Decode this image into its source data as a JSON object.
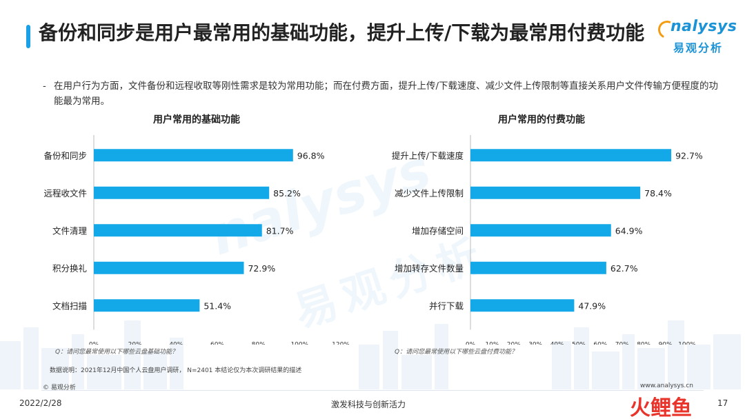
{
  "header": {
    "title": "备份和同步是用户最常用的基础功能，提升上传/下载为最常用付费功能",
    "subtitle_dash": "-",
    "subtitle": "在用户行为方面，文件备份和远程收取等刚性需求是较为常用功能；而在付费方面，提升上传/下载速度、减少文件上传限制等直接关系用户文件传输方便程度的功能最为常用。"
  },
  "logo": {
    "word": "nalysys",
    "sub": "易观分析"
  },
  "watermark": {
    "word": "nalysys",
    "sub": "易观分析"
  },
  "colors": {
    "accent": "#1aa0e6",
    "bar": "#13a9e8",
    "logo": "#1b93d6",
    "logo_orange": "#f39c12"
  },
  "chart_data": [
    {
      "type": "bar",
      "orientation": "horizontal",
      "title": "用户常用的基础功能",
      "categories": [
        "备份和同步",
        "远程收文件",
        "文件清理",
        "积分换礼",
        "文档扫描"
      ],
      "values": [
        96.8,
        85.2,
        81.7,
        72.9,
        51.4
      ],
      "value_labels": [
        "96.8%",
        "85.2%",
        "81.7%",
        "72.9%",
        "51.4%"
      ],
      "xlim": [
        0,
        120
      ],
      "ticks": [
        "0%",
        "20%",
        "40%",
        "60%",
        "80%",
        "100%",
        "120%"
      ],
      "note": "Q：请问您最常使用以下哪些云盘基础功能？"
    },
    {
      "type": "bar",
      "orientation": "horizontal",
      "title": "用户常用的付费功能",
      "categories": [
        "提升上传/下载速度",
        "减少文件上传限制",
        "增加存储空间",
        "增加转存文件数量",
        "并行下载"
      ],
      "values": [
        92.7,
        78.4,
        64.9,
        62.7,
        47.9
      ],
      "value_labels": [
        "92.7%",
        "78.4%",
        "64.9%",
        "62.7%",
        "47.9%"
      ],
      "xlim": [
        0,
        100
      ],
      "ticks": [
        "0%",
        "10%",
        "20%",
        "30%",
        "40%",
        "50%",
        "60%",
        "70%",
        "80%",
        "90%",
        "100%"
      ],
      "note": "Q：请问您最常使用以下哪些云盘付费功能？"
    }
  ],
  "footer": {
    "source": "数据说明：2021年12月中国个人云盘用户调研， N=2401  本结论仅为本次调研结果的描述",
    "copyright": "© 易观分析",
    "site": "www.analysys.cn",
    "date": "2022/2/28",
    "slogan": "激发科技与创新活力",
    "page": "17",
    "stamp": "火鲤鱼"
  }
}
